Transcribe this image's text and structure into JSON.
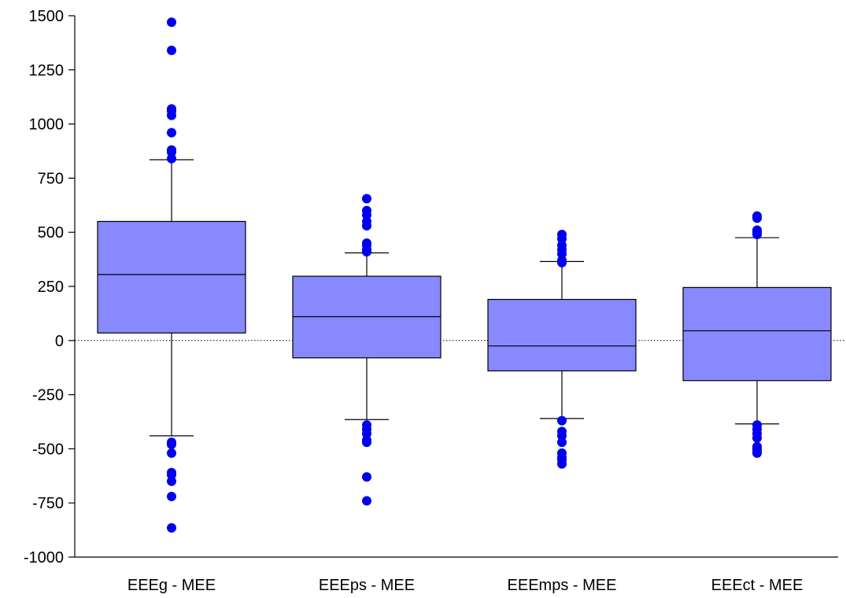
{
  "chart_data": {
    "type": "box",
    "title": "",
    "xlabel": "",
    "ylabel": "",
    "ylim": [
      -1000,
      1500
    ],
    "yticks": [
      1500,
      1250,
      1000,
      750,
      500,
      250,
      0,
      -250,
      -500,
      -750,
      -1000
    ],
    "ytick_labels": [
      "1500",
      "1250",
      "1000",
      "750",
      "500",
      "250",
      "0",
      "-250",
      "-500",
      "-750",
      "-1000"
    ],
    "reference_line": 0,
    "grid": false,
    "box_color": "#8888ff",
    "outlier_color": "#0000ee",
    "categories": [
      "EEEg - MEE",
      "EEEps - MEE",
      "EEEmps - MEE",
      "EEEct - MEE"
    ],
    "boxes": [
      {
        "whisker_low": -440,
        "q1": 35,
        "median": 305,
        "q3": 550,
        "whisker_high": 835,
        "outliers": [
          1470,
          1340,
          1070,
          1060,
          1040,
          960,
          880,
          870,
          840,
          -470,
          -480,
          -520,
          -610,
          -620,
          -650,
          -720,
          -865
        ]
      },
      {
        "whisker_low": -365,
        "q1": -80,
        "median": 110,
        "q3": 297,
        "whisker_high": 405,
        "outliers": [
          655,
          600,
          580,
          550,
          530,
          450,
          440,
          420,
          410,
          -390,
          -410,
          -430,
          -460,
          -470,
          -630,
          -740
        ]
      },
      {
        "whisker_low": -360,
        "q1": -140,
        "median": -25,
        "q3": 190,
        "whisker_high": 365,
        "outliers": [
          490,
          470,
          440,
          420,
          400,
          370,
          360,
          -370,
          -420,
          -440,
          -470,
          -520,
          -540,
          -550,
          -570
        ]
      },
      {
        "whisker_low": -385,
        "q1": -185,
        "median": 45,
        "q3": 245,
        "whisker_high": 475,
        "outliers": [
          575,
          565,
          510,
          500,
          490,
          -390,
          -410,
          -430,
          -450,
          -490,
          -500,
          -510,
          -520
        ]
      }
    ]
  }
}
